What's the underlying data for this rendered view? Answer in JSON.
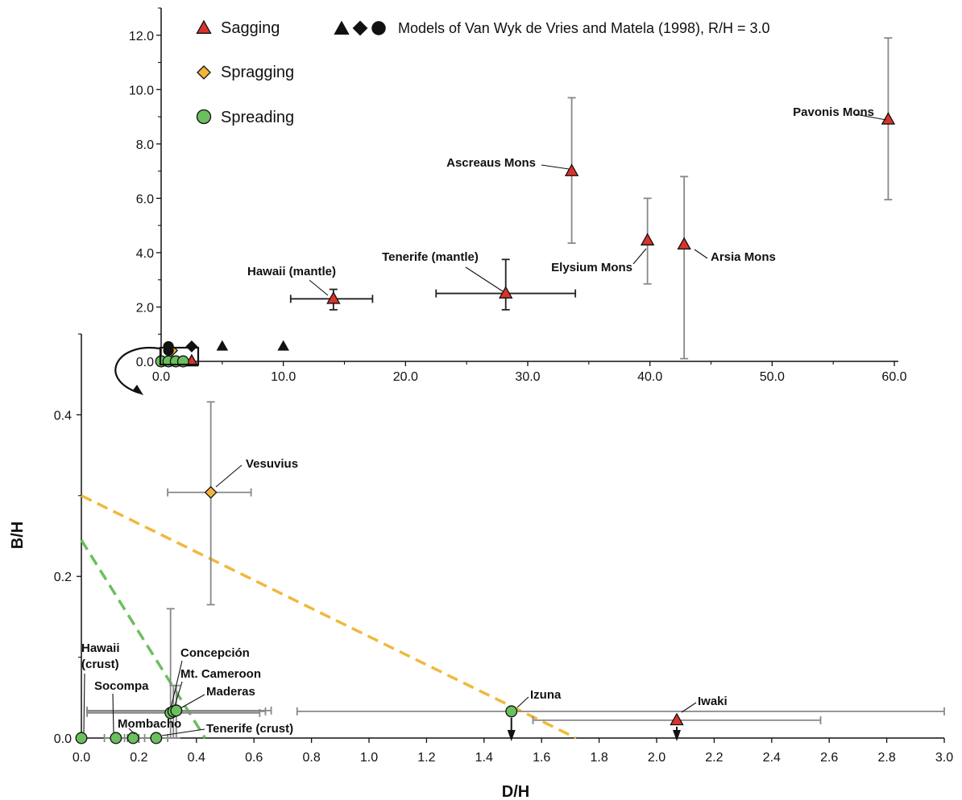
{
  "colors": {
    "sagging": "#d9342b",
    "spragging": "#f2b53a",
    "spreading": "#6cbf5f",
    "errorbar": "#888888",
    "errorbar_dark": "#222222",
    "line_spragging": "#f0b93a",
    "line_spreading": "#6cbf5f"
  },
  "legend": {
    "sagging": "Sagging",
    "spragging": "Spragging",
    "spreading": "Spreading",
    "models": "Models of Van Wyk de Vries and Matela (1998), R/H = 3.0"
  },
  "chart_data": [
    {
      "type": "scatter",
      "panel": "main",
      "xlabel": "",
      "ylabel": "",
      "xlim": [
        0,
        60
      ],
      "ylim": [
        0,
        13
      ],
      "x_ticks": [
        "0.0",
        "10.0",
        "20.0",
        "30.0",
        "40.0",
        "50.0",
        "60.0"
      ],
      "y_ticks": [
        "0.0",
        "2.0",
        "4.0",
        "6.0",
        "8.0",
        "10.0",
        "12.0"
      ],
      "series": [
        {
          "name": "Sagging",
          "marker": "triangle",
          "points": [
            {
              "label": "Pavonis Mons",
              "x": 59.5,
              "y": 8.9,
              "ylo": 5.95,
              "yhi": 11.9
            },
            {
              "label": "Ascreaus Mons",
              "x": 33.6,
              "y": 7.0,
              "ylo": 4.35,
              "yhi": 9.7
            },
            {
              "label": "Elysium Mons",
              "x": 39.8,
              "y": 4.45,
              "ylo": 2.85,
              "yhi": 6.0
            },
            {
              "label": "Arsia Mons",
              "x": 42.8,
              "y": 4.3,
              "ylo": 0.1,
              "yhi": 6.8
            },
            {
              "label": "Hawaii (mantle)",
              "x": 14.1,
              "y": 2.3,
              "xlo": 10.6,
              "xhi": 17.3,
              "ylo": 1.9,
              "yhi": 2.65
            },
            {
              "label": "Tenerife (mantle)",
              "x": 28.2,
              "y": 2.5,
              "xlo": 22.5,
              "xhi": 33.9,
              "ylo": 1.9,
              "yhi": 3.75
            },
            {
              "label": "",
              "x": 2.5,
              "y": 0.0
            }
          ]
        },
        {
          "name": "Spragging",
          "marker": "diamond",
          "points": [
            {
              "label": "",
              "x": 0.9,
              "y": 0.4
            }
          ]
        },
        {
          "name": "Spreading",
          "marker": "circle",
          "points": [
            {
              "label": "",
              "x": 0.0,
              "y": 0.0
            },
            {
              "label": "",
              "x": 0.6,
              "y": 0.0
            },
            {
              "label": "",
              "x": 1.2,
              "y": 0.0
            },
            {
              "label": "",
              "x": 1.8,
              "y": 0.0
            }
          ]
        },
        {
          "name": "Models of Van Wyk de Vries and Matela (1998), R/H = 3.0",
          "marker": "black",
          "points": [
            {
              "shape": "circle",
              "x": 0.6,
              "y": 0.55
            },
            {
              "shape": "circle",
              "x": 0.6,
              "y": 0.4
            },
            {
              "shape": "diamond",
              "x": 2.5,
              "y": 0.55
            },
            {
              "shape": "triangle",
              "x": 5.0,
              "y": 0.55
            },
            {
              "shape": "triangle",
              "x": 10.0,
              "y": 0.55
            }
          ]
        }
      ]
    },
    {
      "type": "scatter",
      "panel": "zoom",
      "xlabel": "D/H",
      "ylabel": "B/H",
      "xlim": [
        0,
        3.0
      ],
      "ylim": [
        0,
        0.5
      ],
      "x_ticks": [
        "0.0",
        "0.2",
        "0.4",
        "0.6",
        "0.8",
        "1.0",
        "1.2",
        "1.4",
        "1.6",
        "1.8",
        "2.0",
        "2.2",
        "2.4",
        "2.6",
        "2.8",
        "3.0"
      ],
      "y_ticks": [
        "0.0",
        "0.2",
        "0.4"
      ],
      "series": [
        {
          "name": "Sagging",
          "marker": "triangle",
          "points": [
            {
              "label": "Iwaki",
              "x": 2.07,
              "y": 0.022,
              "xlo": 1.57,
              "xhi": 2.57,
              "arrow": true
            }
          ]
        },
        {
          "name": "Spragging",
          "marker": "diamond",
          "points": [
            {
              "label": "Vesuvius",
              "x": 0.45,
              "y": 0.304,
              "xlo": 0.3,
              "xhi": 0.59,
              "ylo": 0.165,
              "yhi": 0.416
            }
          ]
        },
        {
          "name": "Spreading",
          "marker": "circle",
          "points": [
            {
              "label": "Izuna",
              "x": 1.495,
              "y": 0.033,
              "xlo": 0.75,
              "xhi": 3.0,
              "arrow": true
            },
            {
              "label": "Concepción",
              "x": 0.31,
              "y": 0.031,
              "xlo": 0.02,
              "xhi": 0.62,
              "ylo": 0.0,
              "yhi": 0.16
            },
            {
              "label": "Mt. Cameroon",
              "x": 0.32,
              "y": 0.033,
              "xlo": 0.02,
              "xhi": 0.64,
              "ylo": 0.0,
              "yhi": 0.065
            },
            {
              "label": "Maderas",
              "x": 0.33,
              "y": 0.034,
              "xlo": 0.02,
              "xhi": 0.66,
              "ylo": 0.0,
              "yhi": 0.065
            },
            {
              "label": "Hawaii (crust)",
              "x": 0.0,
              "y": 0.0
            },
            {
              "label": "Socompa",
              "x": 0.12,
              "y": 0.0,
              "xlo": 0.08,
              "xhi": 0.16
            },
            {
              "label": "Mombacho",
              "x": 0.18,
              "y": 0.0,
              "xlo": 0.15,
              "xhi": 0.22
            },
            {
              "label": "Tenerife (crust)",
              "x": 0.26,
              "y": 0.0,
              "xlo": 0.2,
              "xhi": 0.3
            }
          ]
        }
      ],
      "lines": [
        {
          "name": "spragging boundary",
          "color": "spragging",
          "x": [
            0.0,
            1.72
          ],
          "y": [
            0.3,
            0.0
          ]
        },
        {
          "name": "spreading boundary",
          "color": "spreading",
          "x": [
            0.0,
            0.43
          ],
          "y": [
            0.245,
            0.0
          ]
        }
      ]
    }
  ]
}
